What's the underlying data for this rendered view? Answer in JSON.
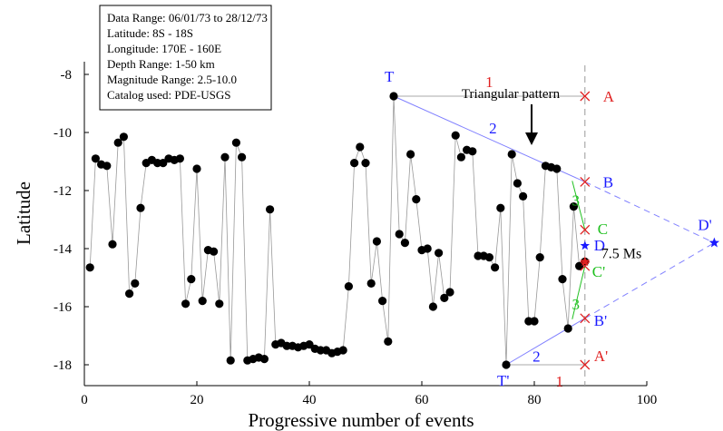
{
  "chart_data": {
    "type": "scatter",
    "title": "",
    "xlabel": "Progressive number of events",
    "ylabel": "Latitude",
    "xlim": [
      0,
      100
    ],
    "ylim": [
      -18,
      -8
    ],
    "x_ticks": [
      0,
      20,
      40,
      60,
      80,
      100
    ],
    "y_ticks": [
      -8,
      -10,
      -12,
      -14,
      -16,
      -18
    ],
    "grid": false,
    "info_box": [
      "Data Range: 06/01/73 to 28/12/73",
      "Latitude: 8S - 18S",
      "Longitude: 170E - 160E",
      "Depth Range: 1-50 km",
      "Magnitude Range: 2.5-10.0",
      "Catalog used: PDE-USGS"
    ],
    "series": [
      {
        "x": [
          1,
          2,
          3,
          4,
          5,
          6,
          7,
          8,
          9,
          10,
          11,
          12,
          13,
          14,
          15,
          16,
          17,
          18,
          19,
          20,
          21,
          22,
          23,
          24,
          25,
          26,
          27,
          28,
          29,
          30,
          31,
          32,
          33,
          34,
          35,
          36,
          37,
          38,
          39,
          40,
          41,
          42,
          43,
          44,
          45,
          46,
          47,
          48,
          49,
          50,
          51,
          52,
          53,
          54,
          55,
          56,
          57,
          58,
          59,
          60,
          61,
          62,
          63,
          64,
          65,
          66,
          67,
          68,
          69,
          70,
          71,
          72,
          73,
          74,
          75,
          76,
          77,
          78,
          79,
          80,
          81,
          82,
          83,
          84,
          85,
          86,
          87,
          88,
          89
        ],
        "y": [
          -14.65,
          -10.9,
          -11.1,
          -11.15,
          -13.85,
          -10.35,
          -10.15,
          -15.55,
          -15.2,
          -12.6,
          -11.05,
          -10.95,
          -11.05,
          -11.05,
          -10.9,
          -10.95,
          -10.9,
          -15.9,
          -15.05,
          -11.25,
          -15.8,
          -14.05,
          -14.1,
          -15.9,
          -10.85,
          -17.85,
          -10.35,
          -10.85,
          -17.85,
          -17.8,
          -17.75,
          -17.8,
          -12.65,
          -17.3,
          -17.25,
          -17.35,
          -17.35,
          -17.4,
          -17.35,
          -17.3,
          -17.45,
          -17.5,
          -17.5,
          -17.6,
          -17.55,
          -17.5,
          -15.3,
          -11.05,
          -10.5,
          -11.05,
          -15.2,
          -13.75,
          -15.8,
          -17.2,
          -8.75,
          -13.5,
          -13.8,
          -10.75,
          -12.3,
          -14.05,
          -14.0,
          -16.0,
          -14.15,
          -15.7,
          -15.5,
          -10.1,
          -10.85,
          -10.6,
          -10.65,
          -14.25,
          -14.25,
          -14.3,
          -14.65,
          -12.6,
          -18.0,
          -10.75,
          -11.75,
          -12.2,
          -16.5,
          -16.5,
          -14.3,
          -11.15,
          -11.2,
          -11.25,
          -15.05,
          -16.75,
          -12.55,
          -14.6,
          -14.45
        ]
      }
    ],
    "annotations": {
      "marker_x": 89,
      "trend_points": {
        "T": {
          "x": 55,
          "y": -8.75
        },
        "T_prime": {
          "x": 75,
          "y": -18.0
        },
        "D_prime": {
          "x": 112,
          "y": -13.8
        }
      },
      "points": [
        {
          "key": "A",
          "y": -8.75,
          "shape": "x",
          "color": "#e02020",
          "label_color": "#e02020"
        },
        {
          "key": "B",
          "y": -11.7,
          "shape": "x",
          "color": "#e02020",
          "label_color": "#1a1aff"
        },
        {
          "key": "C",
          "y": -13.35,
          "shape": "x",
          "color": "#e02020",
          "label_color": "#20c020"
        },
        {
          "key": "D",
          "y": -13.9,
          "shape": "star",
          "color": "#1a1aff",
          "label_color": "#1a1aff"
        },
        {
          "key": "C_prime",
          "y": -14.6,
          "shape": "x",
          "color": "#e02020",
          "label_color": "#20c020"
        },
        {
          "key": "B_prime",
          "y": -16.4,
          "shape": "x",
          "color": "#e02020",
          "label_color": "#1a1aff"
        },
        {
          "key": "A_prime",
          "y": -18.0,
          "shape": "x",
          "color": "#e02020",
          "label_color": "#e02020"
        }
      ],
      "labels": {
        "T": "T",
        "T_prime": "T'",
        "A": "A",
        "B": "B",
        "C": "C",
        "D": "D",
        "C_prime": "C'",
        "B_prime": "B'",
        "A_prime": "A'",
        "D_prime": "D'",
        "one_top": "1",
        "one_bottom": "1",
        "two_top": "2",
        "two_bottom": "2",
        "three_top": "3",
        "three_bottom": "3",
        "triangular_pattern": "Triangular pattern",
        "magnitude": "7.5 Ms"
      },
      "main_event": {
        "x": 89,
        "y": -14.45,
        "color": "#e02020"
      },
      "colors": {
        "red": "#e02020",
        "blue": "#1a1aff",
        "green": "#20c020",
        "data_line": "#999999",
        "marker": "#000000"
      }
    }
  }
}
